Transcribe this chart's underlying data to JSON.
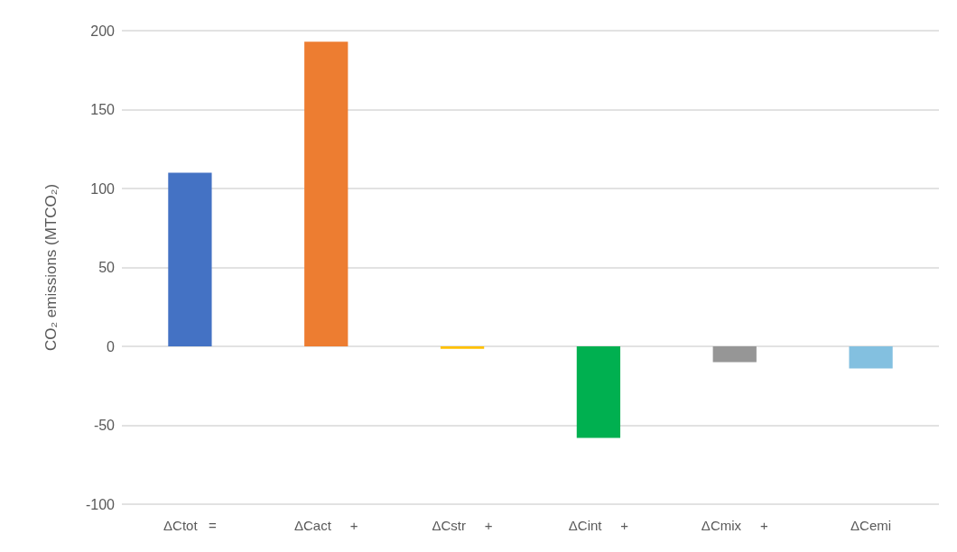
{
  "chart_data": {
    "type": "bar",
    "ylabel": "CO₂ emissions (MTCO₂)",
    "categories": [
      "ΔCtot   =",
      "ΔCact     +",
      "ΔCstr     +",
      "ΔCint     +",
      "ΔCmix     +",
      "ΔCemi"
    ],
    "values": [
      110,
      193,
      -1.5,
      -58,
      -10,
      -14
    ],
    "colors": [
      "#4472c4",
      "#ed7d31",
      "#ffc000",
      "#00b050",
      "#969696",
      "#83c0e0"
    ],
    "ylim": [
      -100,
      200
    ],
    "yticks": [
      -100,
      -50,
      0,
      50,
      100,
      150,
      200
    ],
    "grid": "y"
  }
}
